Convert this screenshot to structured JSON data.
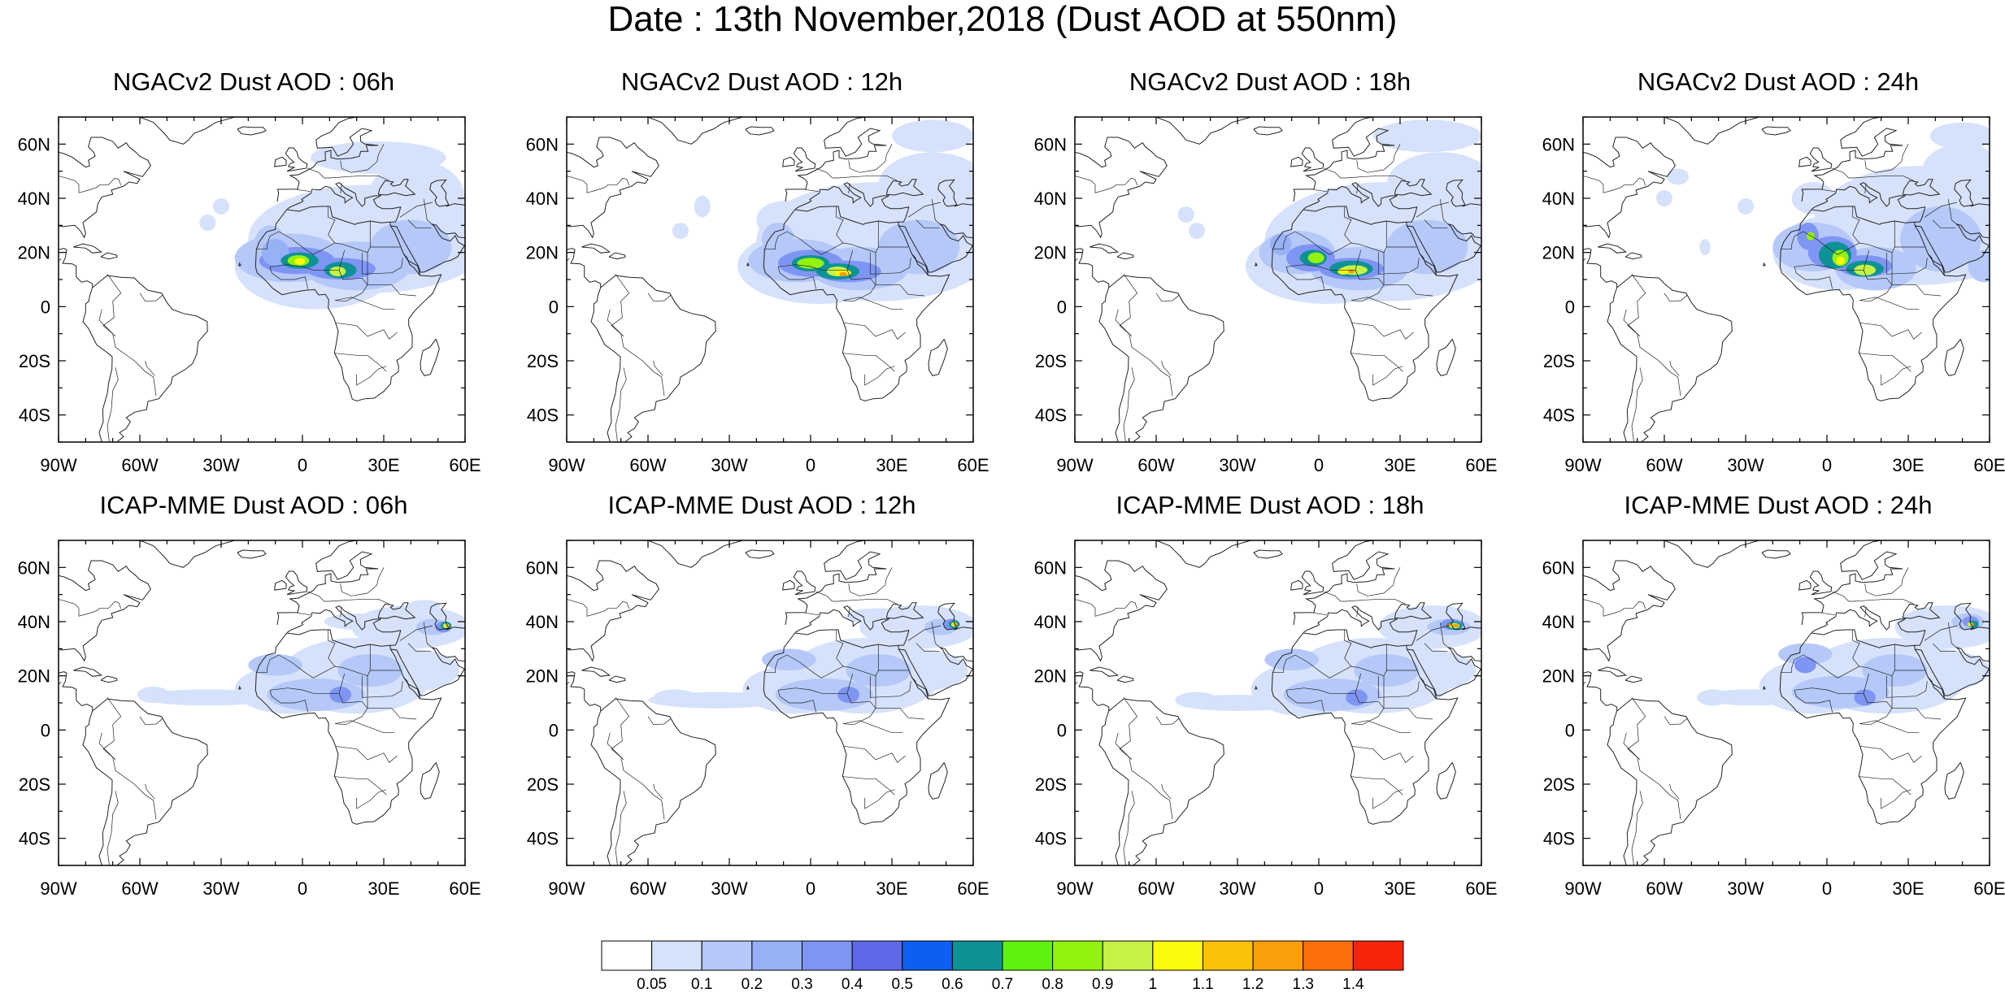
{
  "figure_title": "Date : 13th November,2018 (Dust AOD at 550nm)",
  "panels": [
    {
      "title": "NGACv2 Dust AOD : 06h",
      "model": "ngac",
      "hour": 6
    },
    {
      "title": "NGACv2 Dust AOD : 12h",
      "model": "ngac",
      "hour": 12
    },
    {
      "title": "NGACv2 Dust AOD : 18h",
      "model": "ngac",
      "hour": 18
    },
    {
      "title": "NGACv2 Dust AOD : 24h",
      "model": "ngac",
      "hour": 24
    },
    {
      "title": "ICAP-MME Dust AOD : 06h",
      "model": "icap",
      "hour": 6
    },
    {
      "title": "ICAP-MME Dust AOD : 12h",
      "model": "icap",
      "hour": 12
    },
    {
      "title": "ICAP-MME Dust AOD : 18h",
      "model": "icap",
      "hour": 18
    },
    {
      "title": "ICAP-MME Dust AOD : 24h",
      "model": "icap",
      "hour": 24
    }
  ],
  "map_extent": {
    "lon": [
      -90,
      60
    ],
    "lat": [
      -50,
      70
    ]
  },
  "lon_ticks": [
    {
      "value": -90,
      "label": "90W"
    },
    {
      "value": -60,
      "label": "60W"
    },
    {
      "value": -30,
      "label": "30W"
    },
    {
      "value": 0,
      "label": "0"
    },
    {
      "value": 30,
      "label": "30E"
    },
    {
      "value": 60,
      "label": "60E"
    }
  ],
  "lat_ticks": [
    {
      "value": 60,
      "label": "60N"
    },
    {
      "value": 40,
      "label": "40N"
    },
    {
      "value": 20,
      "label": "20N"
    },
    {
      "value": 0,
      "label": "0"
    },
    {
      "value": -20,
      "label": "20S"
    },
    {
      "value": -40,
      "label": "40S"
    }
  ],
  "colorbar": {
    "labels": [
      "0.05",
      "0.1",
      "0.2",
      "0.3",
      "0.4",
      "0.5",
      "0.6",
      "0.7",
      "0.8",
      "0.9",
      "1",
      "1.1",
      "1.2",
      "1.3",
      "1.4"
    ],
    "colors": [
      "#ffffff",
      "#d6e2fb",
      "#b5c8f8",
      "#97b1f7",
      "#7f95f3",
      "#5e68e8",
      "#0c5ff2",
      "#0e9296",
      "#5ff20e",
      "#93f20e",
      "#c5f245",
      "#fafa0a",
      "#fbc20b",
      "#fb9f0b",
      "#fb7009",
      "#fa230b"
    ]
  },
  "colors": {
    "coast": "#222222",
    "axis": "#000000"
  }
}
